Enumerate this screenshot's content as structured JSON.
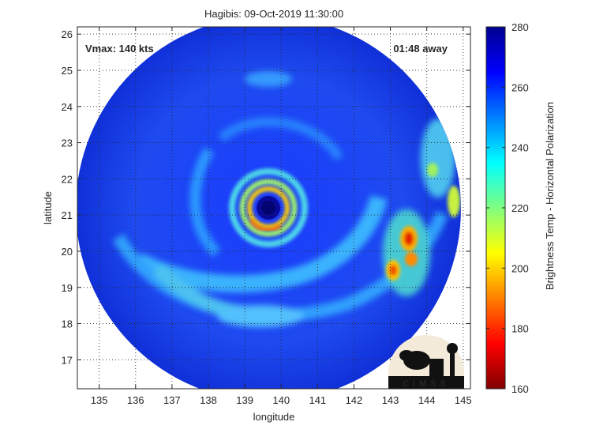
{
  "chart_data": {
    "type": "heatmap",
    "title": "Hagibis: 09-Oct-2019 11:30:00",
    "xlabel": "longitude",
    "ylabel": "latitude",
    "xlim": [
      134.4,
      145.2
    ],
    "ylim": [
      16.2,
      26.2
    ],
    "xticks": [
      135,
      136,
      137,
      138,
      139,
      140,
      141,
      142,
      143,
      144,
      145
    ],
    "yticks": [
      17,
      18,
      19,
      20,
      21,
      22,
      23,
      24,
      25,
      26
    ],
    "grid": true,
    "colorbar": {
      "label": "Brightness Temp - Horizontal Polarization",
      "min": 160,
      "max": 280,
      "ticks": [
        160,
        180,
        200,
        220,
        240,
        260,
        280
      ],
      "colormap": "jet"
    },
    "annotations": {
      "vmax": "Vmax: 140 kts",
      "time_offset": "01:48 away"
    },
    "storm_center": {
      "lon": 139.6,
      "lat": 21.2
    },
    "swath_radius_deg": 5.3,
    "logo_text": "CIMSS"
  }
}
